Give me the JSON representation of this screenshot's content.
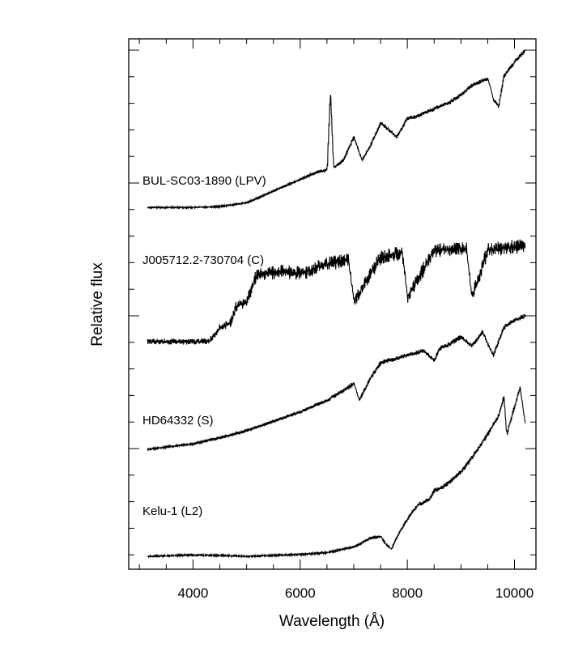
{
  "chart_data": {
    "type": "line",
    "xlabel": "Wavelength  (Å)",
    "ylabel": "Relative flux",
    "xlim": [
      2800,
      10400
    ],
    "x_ticks": [
      4000,
      6000,
      8000,
      10000
    ],
    "x_tick_labels": [
      "4000",
      "6000",
      "8000",
      "10000"
    ],
    "y_tick_labels": "none",
    "grid": false,
    "series": [
      {
        "name": "BUL-SC03-1890 (LPV)",
        "color": "#000000",
        "noise": 2.5,
        "x": [
          3150,
          3500,
          4000,
          4500,
          5000,
          5300,
          5500,
          5700,
          6000,
          6300,
          6500,
          6560,
          6620,
          6800,
          7000,
          7150,
          7300,
          7500,
          7800,
          8000,
          8200,
          8500,
          8800,
          9000,
          9200,
          9500,
          9600,
          9700,
          9800,
          10000,
          10200
        ],
        "y": [
          0.1,
          0.1,
          0.1,
          0.12,
          0.2,
          0.35,
          0.45,
          0.55,
          0.7,
          0.85,
          0.9,
          2.6,
          0.95,
          1.1,
          1.6,
          1.1,
          1.4,
          1.9,
          1.6,
          2.0,
          2.05,
          2.2,
          2.35,
          2.5,
          2.7,
          2.85,
          2.4,
          2.25,
          2.9,
          3.2,
          3.45
        ]
      },
      {
        "name": "J005712.2-730704 (C)",
        "color": "#000000",
        "noise": 9,
        "x": [
          3150,
          3600,
          4000,
          4300,
          4500,
          4700,
          4800,
          5000,
          5150,
          5300,
          5600,
          6000,
          6500,
          6900,
          7000,
          7500,
          7900,
          8000,
          8500,
          9100,
          9200,
          9500,
          10200
        ],
        "y": [
          0.05,
          0.05,
          0.05,
          0.07,
          0.35,
          0.45,
          0.8,
          0.9,
          1.4,
          1.5,
          1.55,
          1.5,
          1.7,
          1.8,
          0.9,
          1.85,
          1.95,
          1.0,
          2.0,
          2.05,
          1.0,
          2.0,
          2.1
        ]
      },
      {
        "name": "HD64332 (S)",
        "color": "#000000",
        "noise": 3,
        "x": [
          3150,
          3500,
          4000,
          4500,
          5000,
          5500,
          6000,
          6500,
          6800,
          7000,
          7100,
          7300,
          7500,
          8000,
          8300,
          8500,
          8600,
          8800,
          9000,
          9200,
          9400,
          9600,
          9800,
          10000,
          10200
        ],
        "y": [
          0.0,
          0.05,
          0.12,
          0.25,
          0.4,
          0.6,
          0.8,
          1.05,
          1.25,
          1.4,
          1.05,
          1.5,
          1.85,
          2.0,
          2.1,
          1.9,
          2.15,
          2.25,
          2.4,
          2.2,
          2.5,
          2.0,
          2.6,
          2.75,
          2.85
        ]
      },
      {
        "name": "Kelu-1 (L2)",
        "color": "#000000",
        "noise": 3,
        "x": [
          3150,
          3300,
          4000,
          5000,
          6000,
          6500,
          7000,
          7300,
          7500,
          7600,
          7700,
          7800,
          8000,
          8200,
          8400,
          8500,
          8700,
          9000,
          9200,
          9500,
          9700,
          9800,
          9850,
          9950,
          10100,
          10200
        ],
        "y": [
          0.0,
          0.0,
          0.03,
          0.0,
          0.04,
          0.08,
          0.2,
          0.38,
          0.42,
          0.25,
          0.15,
          0.4,
          0.8,
          1.1,
          1.2,
          1.4,
          1.5,
          1.8,
          2.1,
          2.6,
          3.0,
          3.4,
          2.6,
          3.0,
          3.6,
          2.8
        ]
      }
    ]
  }
}
